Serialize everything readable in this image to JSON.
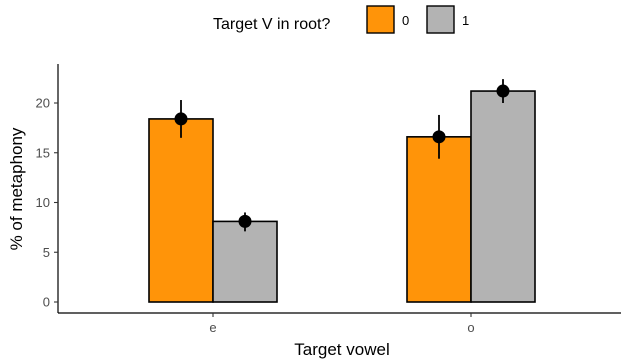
{
  "chart_data": {
    "type": "bar",
    "title": "",
    "xlabel": "Target vowel",
    "ylabel": "% of metaphony",
    "categories": [
      "e",
      "o"
    ],
    "ylim": [
      0,
      23.5
    ],
    "yticks": [
      0,
      5,
      10,
      15,
      20
    ],
    "legend": {
      "title": "Target V in root?",
      "placement": "top"
    },
    "series": [
      {
        "name": "0",
        "color": "#FF9409",
        "values": [
          18.4,
          16.6
        ],
        "error_low": [
          16.5,
          14.4
        ],
        "error_high": [
          20.3,
          18.8
        ]
      },
      {
        "name": "1",
        "color": "#B3B3B3",
        "values": [
          8.1,
          21.2
        ],
        "error_low": [
          7.1,
          20.0
        ],
        "error_high": [
          9.0,
          22.4
        ]
      }
    ],
    "grid": false
  }
}
